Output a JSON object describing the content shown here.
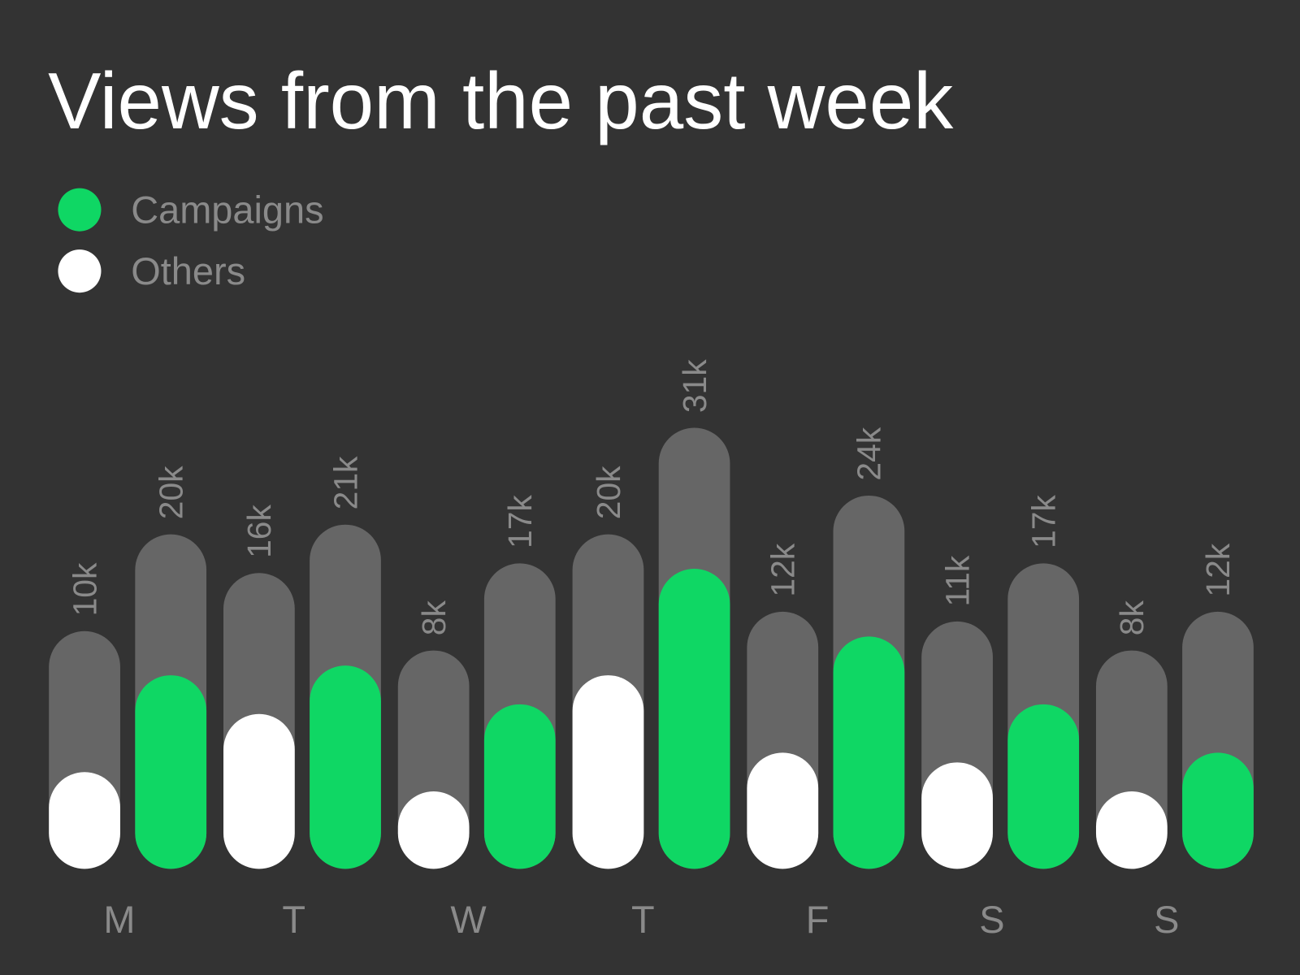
{
  "chart_data": {
    "type": "bar",
    "title": "Views from the past week",
    "categories": [
      "M",
      "T",
      "W",
      "T",
      "F",
      "S",
      "S"
    ],
    "series": [
      {
        "name": "Others",
        "color": "#ffffff",
        "values": [
          10000,
          16000,
          8000,
          20000,
          12000,
          11000,
          8000
        ],
        "value_labels": [
          "10k",
          "16k",
          "8k",
          "20k",
          "12k",
          "11k",
          "8k"
        ]
      },
      {
        "name": "Campaigns",
        "color": "#0fd764",
        "values": [
          20000,
          21000,
          17000,
          31000,
          24000,
          17000,
          12000
        ],
        "value_labels": [
          "20k",
          "21k",
          "17k",
          "31k",
          "24k",
          "17k",
          "12k"
        ]
      }
    ],
    "legend_order": [
      "Campaigns",
      "Others"
    ]
  }
}
